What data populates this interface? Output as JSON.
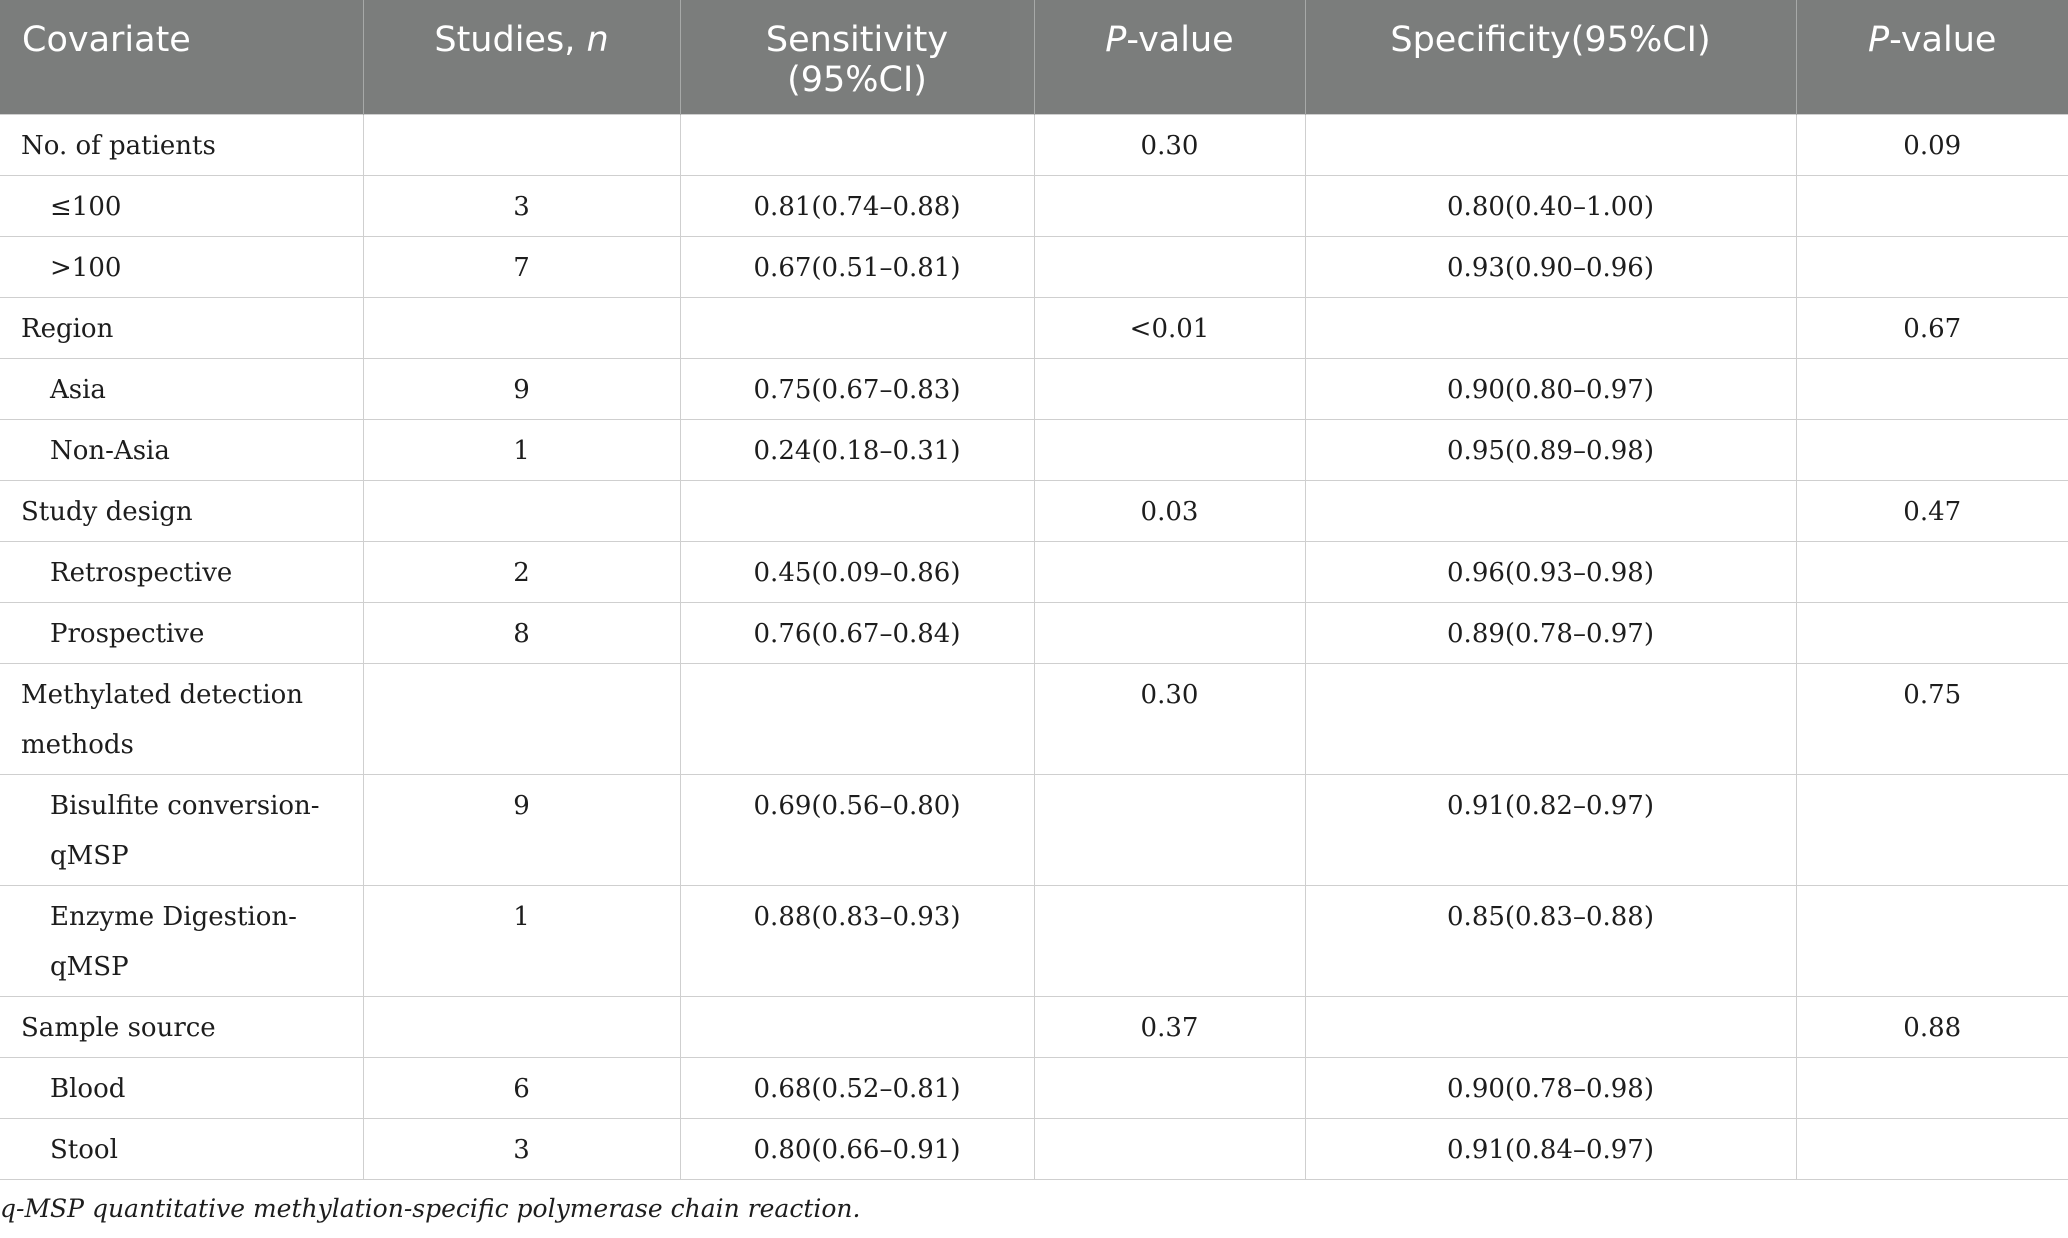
{
  "header": {
    "covariate": "Covariate",
    "studies_prefix": "Studies, ",
    "studies_n": "n",
    "sensitivity": "Sensitivity",
    "sensitivity_ci": "(95%CI)",
    "pvalue_p": "P",
    "pvalue_rest": "-value",
    "specificity": "Specificity(95%CI)",
    "pvalue2_p": "P",
    "pvalue2_rest": "-value"
  },
  "rows": [
    {
      "covariate": "No. of patients",
      "studies": "",
      "sensitivity": "",
      "p1": "0.30",
      "specificity": "",
      "p2": "0.09",
      "sub": false
    },
    {
      "covariate": "≤100",
      "studies": "3",
      "sensitivity": "0.81(0.74–0.88)",
      "p1": "",
      "specificity": "0.80(0.40–1.00)",
      "p2": "",
      "sub": true
    },
    {
      "covariate": ">100",
      "studies": "7",
      "sensitivity": "0.67(0.51–0.81)",
      "p1": "",
      "specificity": "0.93(0.90–0.96)",
      "p2": "",
      "sub": true
    },
    {
      "covariate": "Region",
      "studies": "",
      "sensitivity": "",
      "p1": "<0.01",
      "specificity": "",
      "p2": "0.67",
      "sub": false
    },
    {
      "covariate": "Asia",
      "studies": "9",
      "sensitivity": "0.75(0.67–0.83)",
      "p1": "",
      "specificity": "0.90(0.80–0.97)",
      "p2": "",
      "sub": true
    },
    {
      "covariate": "Non-Asia",
      "studies": "1",
      "sensitivity": "0.24(0.18–0.31)",
      "p1": "",
      "specificity": "0.95(0.89–0.98)",
      "p2": "",
      "sub": true
    },
    {
      "covariate": "Study design",
      "studies": "",
      "sensitivity": "",
      "p1": "0.03",
      "specificity": "",
      "p2": "0.47",
      "sub": false
    },
    {
      "covariate": "Retrospective",
      "studies": "2",
      "sensitivity": "0.45(0.09–0.86)",
      "p1": "",
      "specificity": "0.96(0.93–0.98)",
      "p2": "",
      "sub": true
    },
    {
      "covariate": "Prospective",
      "studies": "8",
      "sensitivity": "0.76(0.67–0.84)",
      "p1": "",
      "specificity": "0.89(0.78–0.97)",
      "p2": "",
      "sub": true
    },
    {
      "covariate_line1": "Methylated detection",
      "covariate_line2": "methods",
      "studies": "",
      "sensitivity": "",
      "p1": "0.30",
      "specificity": "",
      "p2": "0.75",
      "sub": false,
      "tall": true
    },
    {
      "covariate_line1": "Bisulfite conversion-",
      "covariate_line2": "qMSP",
      "studies": "9",
      "sensitivity": "0.69(0.56–0.80)",
      "p1": "",
      "specificity": "0.91(0.82–0.97)",
      "p2": "",
      "sub": true,
      "tall": true
    },
    {
      "covariate_line1": "Enzyme Digestion-",
      "covariate_line2": "qMSP",
      "studies": "1",
      "sensitivity": "0.88(0.83–0.93)",
      "p1": "",
      "specificity": "0.85(0.83–0.88)",
      "p2": "",
      "sub": true,
      "tall": true
    },
    {
      "covariate": "Sample source",
      "studies": "",
      "sensitivity": "",
      "p1": "0.37",
      "specificity": "",
      "p2": "0.88",
      "sub": false
    },
    {
      "covariate": "Blood",
      "studies": "6",
      "sensitivity": "0.68(0.52–0.81)",
      "p1": "",
      "specificity": "0.90(0.78–0.98)",
      "p2": "",
      "sub": true
    },
    {
      "covariate": "Stool",
      "studies": "3",
      "sensitivity": "0.80(0.66–0.91)",
      "p1": "",
      "specificity": "0.91(0.84–0.97)",
      "p2": "",
      "sub": true
    }
  ],
  "footnote": "q-MSP quantitative methylation-specific polymerase chain reaction."
}
